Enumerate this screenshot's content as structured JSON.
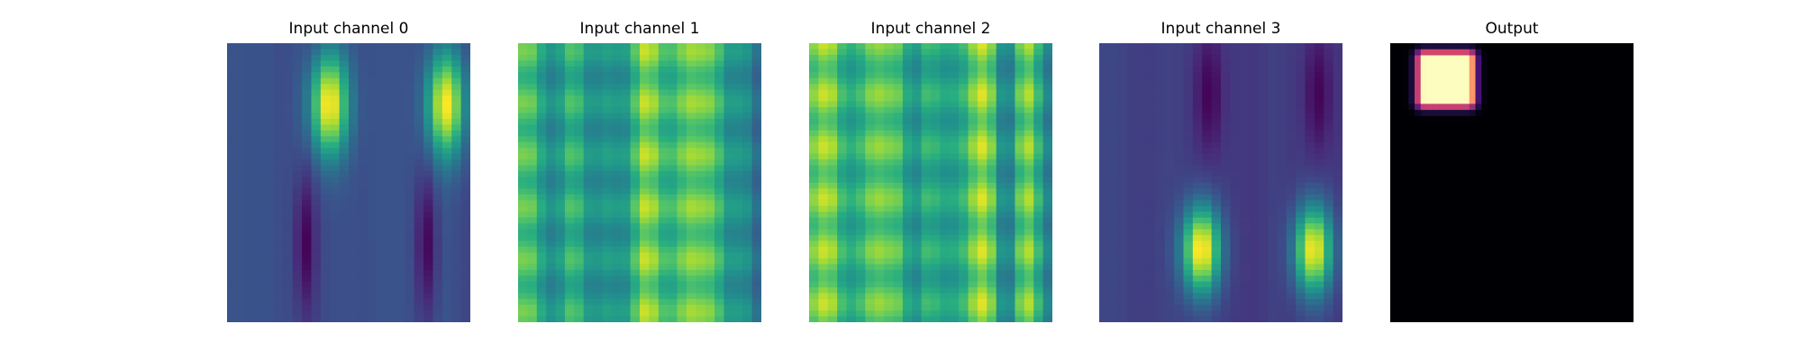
{
  "chart_data": [
    {
      "type": "heatmap",
      "title": "Input channel 0",
      "colormap": "viridis",
      "axis": "off",
      "grid": false,
      "components": [
        {
          "cx": 0.42,
          "cy": 0.22,
          "sx": 0.055,
          "sy": 0.13,
          "amp": 1.0
        },
        {
          "cx": 0.9,
          "cy": 0.22,
          "sx": 0.055,
          "sy": 0.13,
          "amp": 0.95
        }
      ]
    },
    {
      "type": "heatmap",
      "title": "Input channel 1",
      "colormap": "viridis",
      "axis": "off",
      "grid": false
    },
    {
      "type": "heatmap",
      "title": "Input channel 2",
      "colormap": "viridis",
      "axis": "off",
      "grid": false
    },
    {
      "type": "heatmap",
      "title": "Input channel 3",
      "colormap": "viridis",
      "axis": "off",
      "grid": false,
      "components": [
        {
          "cx": 0.42,
          "cy": 0.74,
          "sx": 0.055,
          "sy": 0.11,
          "amp": 1.0
        },
        {
          "cx": 0.88,
          "cy": 0.74,
          "sx": 0.055,
          "sy": 0.11,
          "amp": 0.95
        }
      ]
    },
    {
      "type": "heatmap",
      "title": "Output",
      "colormap": "magma",
      "axis": "off",
      "grid": false,
      "blob": {
        "cx": 0.23,
        "cy": 0.13,
        "hw": 0.09,
        "hh": 0.075,
        "peak": 1.0
      }
    }
  ],
  "colors": {
    "background": "#ffffff",
    "title": "#000000",
    "viridis_low": "#440154",
    "viridis_mid": "#21918c",
    "viridis_high": "#fde725",
    "magma_low": "#000004",
    "magma_high": "#fcfdbf"
  }
}
